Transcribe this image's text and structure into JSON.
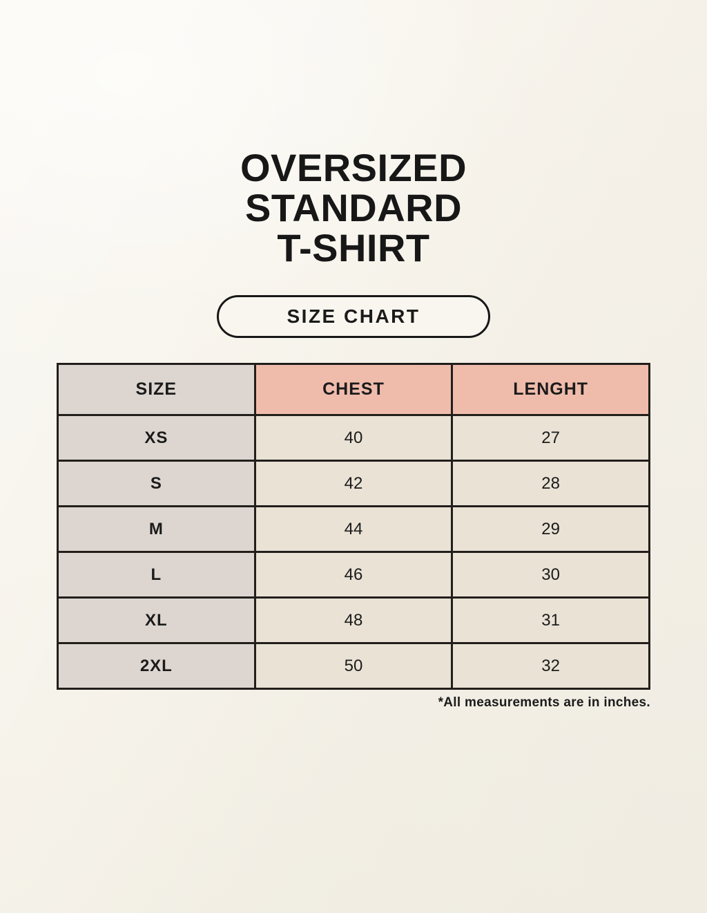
{
  "colors": {
    "page_bg": "#f8f5ee",
    "text": "#1b1b1b",
    "table_border": "#211e1b",
    "size_column_bg": "#ddd6d0",
    "header_accent_bg": "#efbcac",
    "value_cell_bg": "#e9e2d5"
  },
  "title": {
    "lines": [
      "OVERSIZED",
      "STANDARD",
      "T-SHIRT"
    ]
  },
  "size_chart_badge": {
    "label": "SIZE CHART"
  },
  "chart_data": {
    "type": "table",
    "title": "OVERSIZED STANDARD T-SHIRT",
    "columns": [
      "SIZE",
      "CHEST",
      "LENGHT"
    ],
    "rows": [
      [
        "XS",
        "40",
        "27"
      ],
      [
        "S",
        "42",
        "28"
      ],
      [
        "M",
        "44",
        "29"
      ],
      [
        "L",
        "46",
        "30"
      ],
      [
        "XL",
        "48",
        "31"
      ],
      [
        "2XL",
        "50",
        "32"
      ]
    ],
    "units": "inches"
  },
  "footnote": "*All measurements are in inches."
}
